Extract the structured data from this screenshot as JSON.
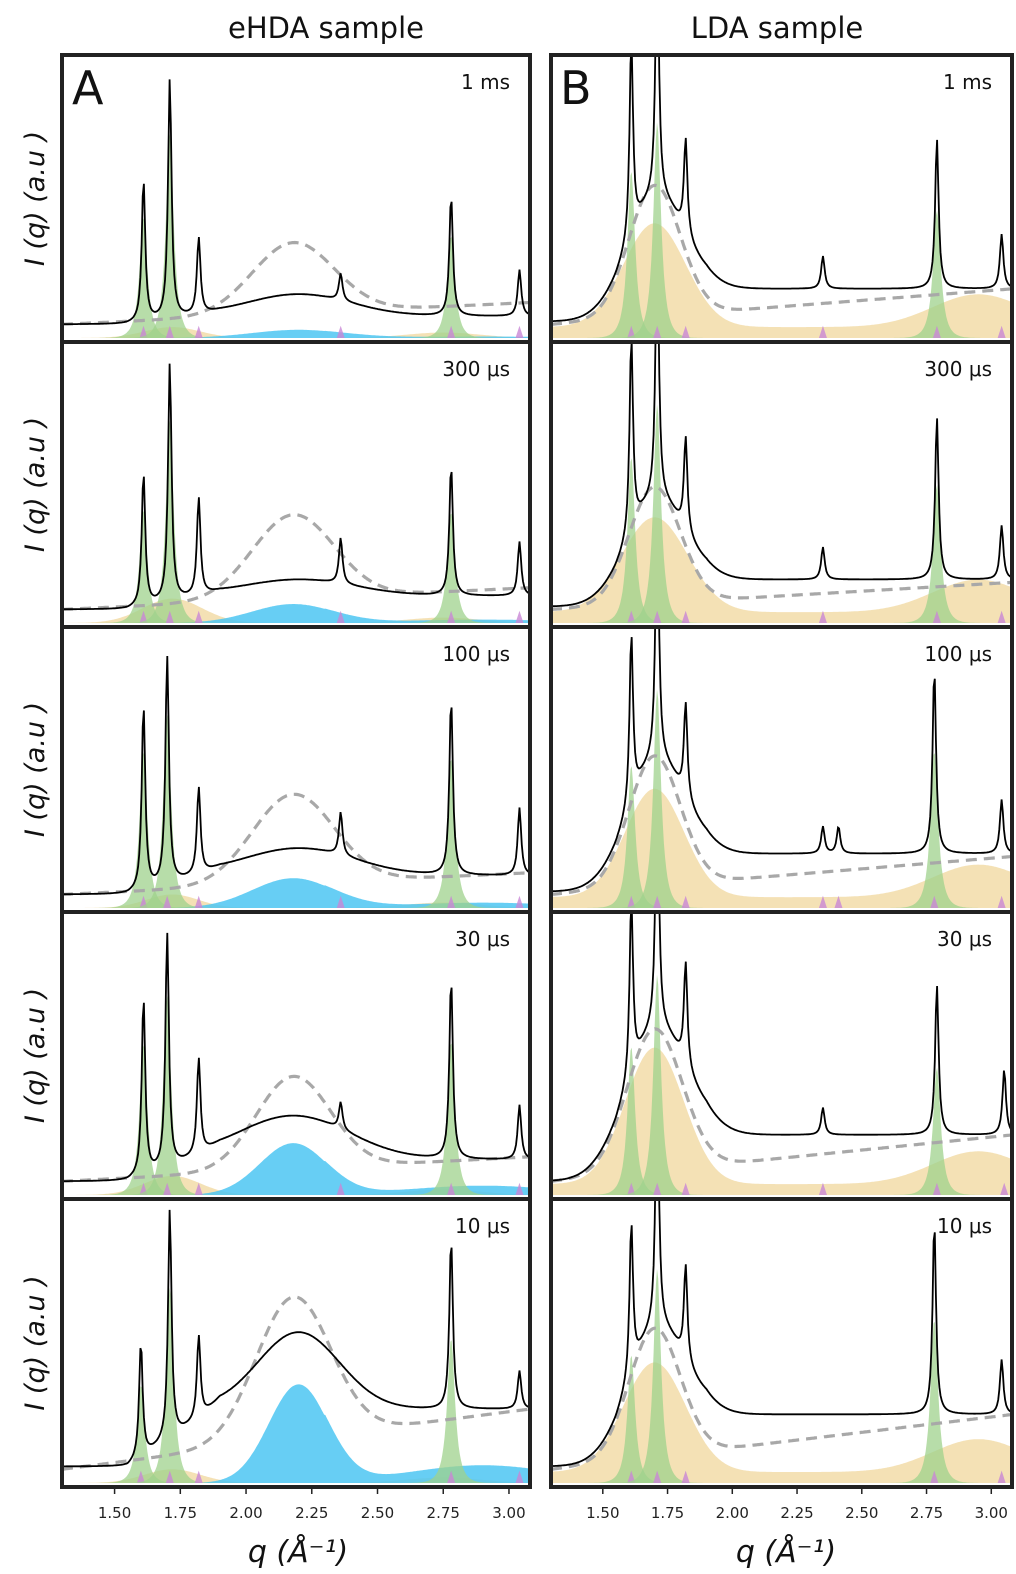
{
  "colors": {
    "ice": "#9fd28c",
    "amorphous_ld": "#f2dca8",
    "amorphous_hd": "#4cc6f2",
    "bragg": "#c987d6",
    "measured": "#000000",
    "reference": "#a8a8a8",
    "frame": "#222222"
  },
  "figure": {
    "columns": [
      {
        "title": "eHDA sample",
        "letter": "A"
      },
      {
        "title": "LDA sample",
        "letter": "B"
      }
    ],
    "ylabel": "I (q) (a.u )",
    "xlabel": "q (Å⁻¹)",
    "xticks": [
      "1.50",
      "1.75",
      "2.00",
      "2.25",
      "2.50",
      "2.75",
      "3.00"
    ]
  },
  "chart_data": [
    {
      "type": "line",
      "panel": "A",
      "sample": "eHDA",
      "time": "1 ms",
      "xlim": [
        1.3,
        3.08
      ],
      "components": {
        "measured": {
          "baseline": [
            0.05,
            0.08
          ],
          "hump": {
            "amp": 0.08,
            "center": 2.2,
            "width": 0.28
          }
        },
        "reference_dashed": {
          "amp": 0.26,
          "center": 2.18,
          "width": 0.22,
          "tail": 0.13
        },
        "hda_fill": {
          "amp": 0.03,
          "center": 2.2,
          "width": 0.25
        },
        "lda_fill": {
          "amp": 0.04,
          "center": 1.72,
          "width": 0.15
        }
      },
      "peaks": [
        {
          "q": 1.61,
          "height": 0.52
        },
        {
          "q": 1.71,
          "height": 0.88
        },
        {
          "q": 1.82,
          "height": 0.28
        },
        {
          "q": 2.36,
          "height": 0.1
        },
        {
          "q": 2.78,
          "height": 0.44
        },
        {
          "q": 3.04,
          "height": 0.17
        }
      ]
    },
    {
      "type": "line",
      "panel": "A",
      "sample": "eHDA",
      "time": "300 μs",
      "xlim": [
        1.3,
        3.08
      ],
      "components": {
        "measured": {
          "baseline": [
            0.05,
            0.1
          ],
          "hump": {
            "amp": 0.06,
            "center": 2.2,
            "width": 0.3
          }
        },
        "reference_dashed": {
          "amp": 0.31,
          "center": 2.18,
          "width": 0.22,
          "tail": 0.13
        },
        "hda_fill": {
          "amp": 0.07,
          "center": 2.18,
          "width": 0.22
        },
        "lda_fill": {
          "amp": 0.09,
          "center": 1.72,
          "width": 0.16
        }
      },
      "peaks": [
        {
          "q": 1.61,
          "height": 0.49
        },
        {
          "q": 1.71,
          "height": 0.88
        },
        {
          "q": 1.82,
          "height": 0.36
        },
        {
          "q": 2.36,
          "height": 0.17
        },
        {
          "q": 2.78,
          "height": 0.48
        },
        {
          "q": 3.04,
          "height": 0.2
        }
      ]
    },
    {
      "type": "line",
      "panel": "A",
      "sample": "eHDA",
      "time": "100 μs",
      "xlim": [
        1.3,
        3.08
      ],
      "components": {
        "measured": {
          "baseline": [
            0.05,
            0.12
          ],
          "hump": {
            "amp": 0.1,
            "center": 2.2,
            "width": 0.3
          }
        },
        "reference_dashed": {
          "amp": 0.33,
          "center": 2.18,
          "width": 0.22,
          "tail": 0.13
        },
        "hda_fill": {
          "amp": 0.11,
          "center": 2.18,
          "width": 0.22
        },
        "lda_fill": {
          "amp": 0.05,
          "center": 1.72,
          "width": 0.14
        }
      },
      "peaks": [
        {
          "q": 1.61,
          "height": 0.68
        },
        {
          "q": 1.7,
          "height": 0.84
        },
        {
          "q": 1.82,
          "height": 0.32
        },
        {
          "q": 2.36,
          "height": 0.16
        },
        {
          "q": 2.78,
          "height": 0.65
        },
        {
          "q": 3.04,
          "height": 0.25
        }
      ]
    },
    {
      "type": "line",
      "panel": "A",
      "sample": "eHDA",
      "time": "30 μs",
      "xlim": [
        1.3,
        3.08
      ],
      "components": {
        "measured": {
          "baseline": [
            0.05,
            0.13
          ],
          "hump": {
            "amp": 0.16,
            "center": 2.18,
            "width": 0.3
          }
        },
        "reference_dashed": {
          "amp": 0.34,
          "center": 2.18,
          "width": 0.2,
          "tail": 0.14
        },
        "hda_fill": {
          "amp": 0.19,
          "center": 2.18,
          "width": 0.18
        },
        "lda_fill": {
          "amp": 0.07,
          "center": 1.72,
          "width": 0.15
        }
      },
      "peaks": [
        {
          "q": 1.61,
          "height": 0.65
        },
        {
          "q": 1.7,
          "height": 0.86
        },
        {
          "q": 1.82,
          "height": 0.35
        },
        {
          "q": 2.36,
          "height": 0.1
        },
        {
          "q": 2.78,
          "height": 0.66
        },
        {
          "q": 3.04,
          "height": 0.2
        }
      ]
    },
    {
      "type": "line",
      "panel": "A",
      "sample": "eHDA",
      "time": "10 μs",
      "xlim": [
        1.3,
        3.08
      ],
      "components": {
        "measured": {
          "baseline": [
            0.06,
            0.27
          ],
          "hump": {
            "amp": 0.28,
            "center": 2.2,
            "width": 0.22
          }
        },
        "reference_dashed": {
          "amp": 0.52,
          "center": 2.18,
          "width": 0.2,
          "tail": 0.27
        },
        "hda_fill": {
          "amp": 0.36,
          "center": 2.2,
          "width": 0.16
        },
        "lda_fill": {
          "amp": 0.05,
          "center": 1.72,
          "width": 0.15
        }
      },
      "peaks": [
        {
          "q": 1.6,
          "height": 0.42
        },
        {
          "q": 1.71,
          "height": 0.84
        },
        {
          "q": 1.82,
          "height": 0.3
        },
        {
          "q": 2.78,
          "height": 0.62
        },
        {
          "q": 3.04,
          "height": 0.14
        }
      ]
    },
    {
      "type": "line",
      "panel": "B",
      "sample": "LDA",
      "time": "1 ms",
      "xlim": [
        1.3,
        3.08
      ],
      "components": {
        "measured": {
          "baseline": [
            0.06,
            0.18
          ],
          "hump": {
            "amp": 0.4,
            "center": 1.7,
            "width": 0.16
          }
        },
        "reference_dashed": {
          "amp": 0.48,
          "center": 1.7,
          "width": 0.14,
          "tail": 0.18
        },
        "lda_fill": {
          "amp": 0.38,
          "center": 1.7,
          "width": 0.17
        }
      },
      "peaks": [
        {
          "q": 1.61,
          "height": 0.72
        },
        {
          "q": 1.71,
          "height": 0.93
        },
        {
          "q": 1.82,
          "height": 0.35
        },
        {
          "q": 2.35,
          "height": 0.12
        },
        {
          "q": 2.79,
          "height": 0.55
        },
        {
          "q": 3.04,
          "height": 0.2
        }
      ]
    },
    {
      "type": "line",
      "panel": "B",
      "sample": "LDA",
      "time": "300 μs",
      "xlim": [
        1.3,
        3.08
      ],
      "components": {
        "measured": {
          "baseline": [
            0.06,
            0.16
          ],
          "hump": {
            "amp": 0.35,
            "center": 1.7,
            "width": 0.16
          }
        },
        "reference_dashed": {
          "amp": 0.43,
          "center": 1.7,
          "width": 0.14,
          "tail": 0.15
        },
        "lda_fill": {
          "amp": 0.35,
          "center": 1.7,
          "width": 0.18
        }
      },
      "peaks": [
        {
          "q": 1.61,
          "height": 0.72
        },
        {
          "q": 1.71,
          "height": 0.95
        },
        {
          "q": 1.82,
          "height": 0.35
        },
        {
          "q": 2.35,
          "height": 0.12
        },
        {
          "q": 2.79,
          "height": 0.6
        },
        {
          "q": 3.04,
          "height": 0.2
        }
      ]
    },
    {
      "type": "line",
      "panel": "B",
      "sample": "LDA",
      "time": "100 μs",
      "xlim": [
        1.3,
        3.08
      ],
      "components": {
        "measured": {
          "baseline": [
            0.06,
            0.2
          ],
          "hump": {
            "amp": 0.42,
            "center": 1.7,
            "width": 0.16
          }
        },
        "reference_dashed": {
          "amp": 0.48,
          "center": 1.7,
          "width": 0.14,
          "tail": 0.19
        },
        "lda_fill": {
          "amp": 0.4,
          "center": 1.7,
          "width": 0.16
        }
      },
      "peaks": [
        {
          "q": 1.61,
          "height": 0.62
        },
        {
          "q": 1.71,
          "height": 0.95
        },
        {
          "q": 1.82,
          "height": 0.35
        },
        {
          "q": 2.35,
          "height": 0.1
        },
        {
          "q": 2.41,
          "height": 0.1
        },
        {
          "q": 2.78,
          "height": 0.68
        },
        {
          "q": 3.04,
          "height": 0.2
        }
      ]
    },
    {
      "type": "line",
      "panel": "B",
      "sample": "LDA",
      "time": "30 μs",
      "xlim": [
        1.3,
        3.08
      ],
      "components": {
        "measured": {
          "baseline": [
            0.05,
            0.22
          ],
          "hump": {
            "amp": 0.48,
            "center": 1.7,
            "width": 0.17
          }
        },
        "reference_dashed": {
          "amp": 0.52,
          "center": 1.7,
          "width": 0.15,
          "tail": 0.22
        },
        "lda_fill": {
          "amp": 0.5,
          "center": 1.7,
          "width": 0.16
        }
      },
      "peaks": [
        {
          "q": 1.61,
          "height": 0.64
        },
        {
          "q": 1.71,
          "height": 0.95
        },
        {
          "q": 1.82,
          "height": 0.38
        },
        {
          "q": 2.35,
          "height": 0.1
        },
        {
          "q": 2.79,
          "height": 0.55
        },
        {
          "q": 3.05,
          "height": 0.24
        }
      ]
    },
    {
      "type": "line",
      "panel": "B",
      "sample": "LDA",
      "time": "10 μs",
      "xlim": [
        1.3,
        3.08
      ],
      "components": {
        "measured": {
          "baseline": [
            0.06,
            0.25
          ],
          "hump": {
            "amp": 0.42,
            "center": 1.7,
            "width": 0.16
          }
        },
        "reference_dashed": {
          "amp": 0.47,
          "center": 1.7,
          "width": 0.14,
          "tail": 0.25
        },
        "lda_fill": {
          "amp": 0.4,
          "center": 1.7,
          "width": 0.17
        }
      },
      "peaks": [
        {
          "q": 1.61,
          "height": 0.55
        },
        {
          "q": 1.71,
          "height": 0.92
        },
        {
          "q": 1.82,
          "height": 0.35
        },
        {
          "q": 2.78,
          "height": 0.7
        },
        {
          "q": 3.04,
          "height": 0.2
        }
      ]
    }
  ]
}
